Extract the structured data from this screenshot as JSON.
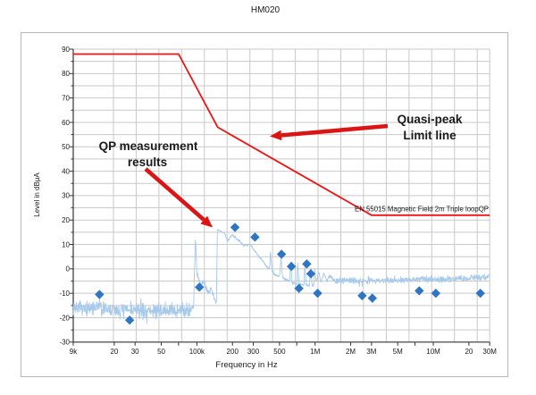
{
  "title": "HM020",
  "colors": {
    "limit_line_red": "#f01414",
    "arrow_red": "#dc1414",
    "trace_blue": "#a6c9ec",
    "marker_blue": "#2e75c3",
    "gridline_gray": "#c9c9c9",
    "axis_black": "#333333"
  },
  "chart_data": {
    "type": "line",
    "title": "HM020",
    "xlabel": "Frequency in Hz",
    "ylabel": "Level in dBμA",
    "x_scale": "log",
    "xlim": [
      9000,
      30000000
    ],
    "ylim": [
      -30,
      90
    ],
    "y_major_step": 10,
    "y_minor_step": 5,
    "grid": true,
    "x_ticks": [
      {
        "f": 9000,
        "label": "9k"
      },
      {
        "f": 20000,
        "label": "20"
      },
      {
        "f": 30000,
        "label": "30"
      },
      {
        "f": 50000,
        "label": "50"
      },
      {
        "f": 70000,
        "label": ""
      },
      {
        "f": 100000,
        "label": "100k"
      },
      {
        "f": 200000,
        "label": "200"
      },
      {
        "f": 300000,
        "label": "300"
      },
      {
        "f": 500000,
        "label": "500"
      },
      {
        "f": 700000,
        "label": ""
      },
      {
        "f": 1000000,
        "label": "1M"
      },
      {
        "f": 2000000,
        "label": "2M"
      },
      {
        "f": 3000000,
        "label": "3M"
      },
      {
        "f": 5000000,
        "label": "5M"
      },
      {
        "f": 7000000,
        "label": ""
      },
      {
        "f": 10000000,
        "label": "10M"
      },
      {
        "f": 20000000,
        "label": "20"
      },
      {
        "f": 30000000,
        "label": "30M"
      }
    ],
    "limit_line": {
      "name": "Quasi-peak limit line",
      "label": "EN 55015 Magnetic Field  2m Triple loopQP",
      "points_hz_db": [
        [
          9000,
          88
        ],
        [
          70000,
          88
        ],
        [
          150000,
          58
        ],
        [
          3000000,
          22
        ],
        [
          30000000,
          22
        ]
      ]
    },
    "qp_markers": {
      "name": "QP measurement results",
      "points_hz_db": [
        [
          15000,
          -10.5
        ],
        [
          27000,
          -21
        ],
        [
          105000,
          -7.5
        ],
        [
          210000,
          17
        ],
        [
          310000,
          13
        ],
        [
          520000,
          6
        ],
        [
          630000,
          1
        ],
        [
          730000,
          -8
        ],
        [
          850000,
          2
        ],
        [
          920000,
          -2
        ],
        [
          1050000,
          -10
        ],
        [
          2500000,
          -11
        ],
        [
          3050000,
          -12
        ],
        [
          7600000,
          -9
        ],
        [
          10500000,
          -10
        ],
        [
          25000000,
          -10
        ]
      ]
    },
    "trace": {
      "name": "measured spectrum trace",
      "samples": 1400,
      "seed": 7,
      "base_logf_db": [
        [
          3.954,
          -15.5
        ],
        [
          4.05,
          -16.5
        ],
        [
          4.16,
          -16.3
        ],
        [
          4.176,
          -12.8
        ],
        [
          4.19,
          -16.5
        ],
        [
          4.55,
          -17.2
        ],
        [
          4.8,
          -17.0
        ],
        [
          4.95,
          -16.5
        ],
        [
          4.972,
          -15.5
        ],
        [
          4.987,
          13.0
        ],
        [
          5.0,
          -2.0
        ],
        [
          5.03,
          -7.0
        ],
        [
          5.06,
          -5.0
        ],
        [
          5.09,
          -9.5
        ],
        [
          5.12,
          -8.0
        ],
        [
          5.145,
          -12.0
        ],
        [
          5.165,
          -13.5
        ],
        [
          5.1655,
          -13.5
        ],
        [
          5.173,
          16.0
        ],
        [
          5.23,
          14.8
        ],
        [
          5.26,
          11.5
        ],
        [
          5.3,
          14.0
        ],
        [
          5.35,
          11.8
        ],
        [
          5.4,
          9.5
        ],
        [
          5.45,
          10.2
        ],
        [
          5.48,
          8.0
        ],
        [
          5.52,
          5.5
        ],
        [
          5.56,
          3.0
        ],
        [
          5.595,
          0.5
        ],
        [
          5.615,
          0.0
        ],
        [
          5.622,
          7.5
        ],
        [
          5.635,
          -1.0
        ],
        [
          5.66,
          -2.5
        ],
        [
          5.7,
          -3.0
        ],
        [
          5.712,
          4.5
        ],
        [
          5.725,
          -3.5
        ],
        [
          5.755,
          -4.5
        ],
        [
          5.785,
          -5.0
        ],
        [
          5.792,
          3.0
        ],
        [
          5.805,
          -5.5
        ],
        [
          5.835,
          -6.0
        ],
        [
          5.845,
          -6.2
        ],
        [
          5.853,
          2.5
        ],
        [
          5.865,
          -6.3
        ],
        [
          5.895,
          -6.5
        ],
        [
          5.906,
          -6.5
        ],
        [
          5.913,
          1.5
        ],
        [
          5.925,
          -6.5
        ],
        [
          5.952,
          -7.0
        ],
        [
          5.963,
          1.0
        ],
        [
          5.975,
          -6.8
        ],
        [
          5.988,
          -7.0
        ],
        [
          5.996,
          0.0
        ],
        [
          6.01,
          -5.8
        ],
        [
          6.03,
          -0.8
        ],
        [
          6.05,
          -5.5
        ],
        [
          6.075,
          -1.5
        ],
        [
          6.1,
          -5.2
        ],
        [
          6.13,
          -2.5
        ],
        [
          6.16,
          -5.0
        ],
        [
          6.25,
          -4.8
        ],
        [
          6.5,
          -4.8
        ],
        [
          6.75,
          -4.5
        ],
        [
          6.95,
          -4.0
        ],
        [
          7.05,
          -4.4
        ],
        [
          7.2,
          -4.0
        ],
        [
          7.35,
          -3.6
        ],
        [
          7.477,
          -3.2
        ]
      ],
      "noise_logf_amp": [
        [
          3.954,
          3.8
        ],
        [
          4.94,
          3.8
        ],
        [
          4.96,
          1.2
        ],
        [
          5.0,
          1.5
        ],
        [
          5.16,
          1.5
        ],
        [
          5.18,
          0.6
        ],
        [
          5.6,
          0.6
        ],
        [
          5.99,
          0.5
        ],
        [
          6.03,
          1.0
        ],
        [
          6.2,
          1.5
        ],
        [
          7.477,
          1.6
        ]
      ]
    },
    "annotations": [
      {
        "lines": [
          "QP measurement",
          "results"
        ]
      },
      {
        "lines": [
          "Quasi-peak",
          "Limit line"
        ]
      }
    ],
    "legend_position": "none"
  }
}
